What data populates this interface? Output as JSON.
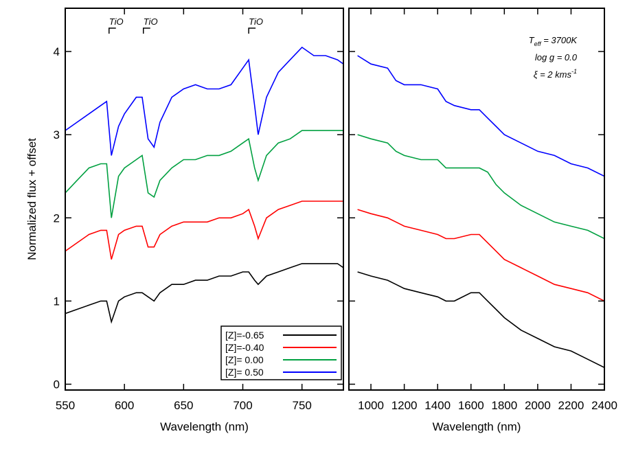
{
  "chart_data": [
    {
      "type": "line",
      "xlabel": "Wavelength (nm)",
      "ylabel": "Normalized flux + offset",
      "xlim": [
        550,
        785
      ],
      "xticks": [
        550,
        600,
        650,
        700,
        750
      ],
      "ylim": [
        -0.07,
        4.52
      ],
      "yticks": [
        0,
        1,
        2,
        3,
        4
      ],
      "legend": "lower right",
      "annotations": [
        {
          "text": "TiO",
          "x": 587
        },
        {
          "text": "TiO",
          "x": 616
        },
        {
          "text": "TiO",
          "x": 705
        }
      ],
      "x": [
        550,
        560,
        570,
        580,
        585,
        589,
        595,
        600,
        610,
        615,
        620,
        625,
        630,
        640,
        650,
        660,
        670,
        680,
        690,
        700,
        705,
        710,
        713,
        720,
        730,
        740,
        750,
        760,
        770,
        780,
        785
      ],
      "series": [
        {
          "name": "[Z]=-0.65",
          "color": "#000000",
          "values": [
            0.85,
            0.9,
            0.95,
            1.0,
            1.0,
            0.75,
            1.0,
            1.05,
            1.1,
            1.1,
            1.05,
            1.0,
            1.1,
            1.2,
            1.2,
            1.25,
            1.25,
            1.3,
            1.3,
            1.35,
            1.35,
            1.25,
            1.2,
            1.3,
            1.35,
            1.4,
            1.45,
            1.45,
            1.45,
            1.45,
            1.4
          ]
        },
        {
          "name": "[Z]=-0.40",
          "color": "#ff0000",
          "values": [
            1.6,
            1.7,
            1.8,
            1.85,
            1.85,
            1.5,
            1.8,
            1.85,
            1.9,
            1.9,
            1.65,
            1.65,
            1.8,
            1.9,
            1.95,
            1.95,
            1.95,
            2.0,
            2.0,
            2.05,
            2.1,
            1.9,
            1.75,
            2.0,
            2.1,
            2.15,
            2.2,
            2.2,
            2.2,
            2.2,
            2.2
          ]
        },
        {
          "name": "[Z]= 0.00",
          "color": "#00a040",
          "values": [
            2.3,
            2.45,
            2.6,
            2.65,
            2.65,
            2.0,
            2.5,
            2.6,
            2.7,
            2.75,
            2.3,
            2.25,
            2.45,
            2.6,
            2.7,
            2.7,
            2.75,
            2.75,
            2.8,
            2.9,
            2.95,
            2.6,
            2.45,
            2.75,
            2.9,
            2.95,
            3.05,
            3.05,
            3.05,
            3.05,
            3.05
          ]
        },
        {
          "name": "[Z]= 0.50",
          "color": "#0000ff",
          "values": [
            3.05,
            3.15,
            3.25,
            3.35,
            3.4,
            2.75,
            3.1,
            3.25,
            3.45,
            3.45,
            2.95,
            2.85,
            3.15,
            3.45,
            3.55,
            3.6,
            3.55,
            3.55,
            3.6,
            3.8,
            3.9,
            3.35,
            3.0,
            3.45,
            3.75,
            3.9,
            4.05,
            3.95,
            3.95,
            3.9,
            3.85
          ]
        }
      ]
    },
    {
      "type": "line",
      "xlabel": "Wavelength (nm)",
      "xlim": [
        868,
        2400
      ],
      "xticks": [
        1000,
        1200,
        1400,
        1600,
        1800,
        2000,
        2200,
        2400
      ],
      "ylim": [
        -0.07,
        4.52
      ],
      "yticks": [
        0,
        1,
        2,
        3,
        4
      ],
      "params": [
        {
          "text": "T",
          "sub": "eff",
          "rest": " = 3700K"
        },
        {
          "text": "log g = 0.0"
        },
        {
          "text": "ξ = 2 kms",
          "sup": "-1"
        }
      ],
      "x": [
        920,
        1000,
        1100,
        1150,
        1200,
        1300,
        1400,
        1450,
        1500,
        1600,
        1650,
        1700,
        1750,
        1800,
        1900,
        2000,
        2100,
        2200,
        2300,
        2400
      ],
      "series": [
        {
          "color": "#000000",
          "values": [
            1.35,
            1.3,
            1.25,
            1.2,
            1.15,
            1.1,
            1.05,
            1.0,
            1.0,
            1.1,
            1.1,
            1.0,
            0.9,
            0.8,
            0.65,
            0.55,
            0.45,
            0.4,
            0.3,
            0.2
          ]
        },
        {
          "color": "#ff0000",
          "values": [
            2.1,
            2.05,
            2.0,
            1.95,
            1.9,
            1.85,
            1.8,
            1.75,
            1.75,
            1.8,
            1.8,
            1.7,
            1.6,
            1.5,
            1.4,
            1.3,
            1.2,
            1.15,
            1.1,
            1.0
          ]
        },
        {
          "color": "#00a040",
          "values": [
            3.0,
            2.95,
            2.9,
            2.8,
            2.75,
            2.7,
            2.7,
            2.6,
            2.6,
            2.6,
            2.6,
            2.55,
            2.4,
            2.3,
            2.15,
            2.05,
            1.95,
            1.9,
            1.85,
            1.75
          ]
        },
        {
          "color": "#0000ff",
          "values": [
            3.95,
            3.85,
            3.8,
            3.65,
            3.6,
            3.6,
            3.55,
            3.4,
            3.35,
            3.3,
            3.3,
            3.2,
            3.1,
            3.0,
            2.9,
            2.8,
            2.75,
            2.65,
            2.6,
            2.5
          ]
        }
      ]
    }
  ]
}
